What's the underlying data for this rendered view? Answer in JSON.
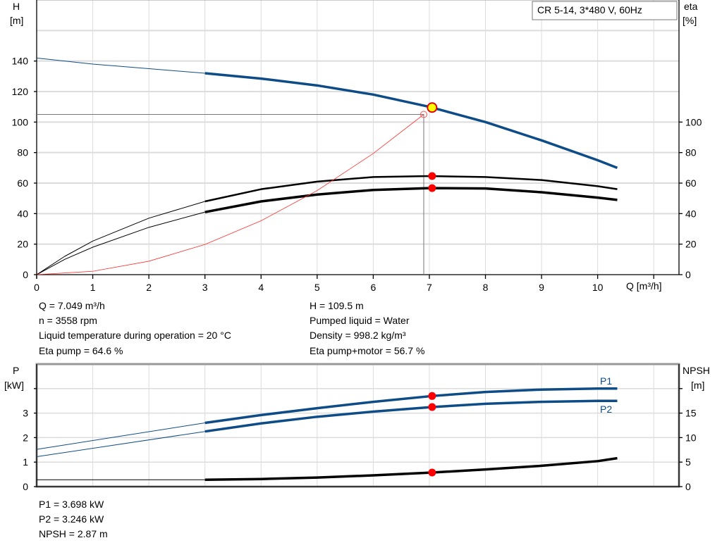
{
  "title_box": "CR 5-14, 3*480 V, 60Hz",
  "info_left": [
    "Q = 7.049 m³/h",
    "n = 3558 rpm",
    "Liquid temperature during operation = 20 °C",
    "Eta pump = 64.6 %"
  ],
  "info_right": [
    "H = 109.5 m",
    "Pumped liquid = Water",
    "Density = 998.2 kg/m³",
    "Eta pump+motor = 56.7 %"
  ],
  "info_bottom": [
    "P1 = 3.698 kW",
    "P2 = 3.246 kW",
    "NPSH = 2.87 m"
  ],
  "chart_data": [
    {
      "type": "line",
      "ylabel_top": "H",
      "ylabel_unit": "[m]",
      "y2label_top": "eta",
      "y2label_unit": "[%]",
      "xlabel": "Q [m³/h]",
      "xlim": [
        0,
        11.45
      ],
      "ylim": [
        0,
        180
      ],
      "y2lim": [
        0,
        180
      ],
      "xticks": [
        0,
        1,
        2,
        3,
        4,
        5,
        6,
        7,
        8,
        9,
        10
      ],
      "yticks": [
        0,
        20,
        40,
        60,
        80,
        100,
        120,
        140
      ],
      "y2ticks": [
        0,
        20,
        40,
        60,
        80,
        100
      ],
      "grid": true,
      "series": [
        {
          "key": "H",
          "axis": "left",
          "color": "#0e4c87",
          "x": [
            0,
            1,
            2,
            3,
            4,
            5,
            6,
            7,
            8,
            9,
            10,
            10.35
          ],
          "y": [
            142,
            138,
            135,
            132,
            128.5,
            124,
            118,
            110,
            100,
            88,
            75,
            70
          ],
          "thin_until": 3
        },
        {
          "key": "eta_pump",
          "axis": "right",
          "color": "#000000",
          "x": [
            0,
            0.5,
            1,
            2,
            3,
            4,
            5,
            6,
            7,
            8,
            9,
            10,
            10.35
          ],
          "y": [
            0,
            12,
            22,
            37,
            48,
            56,
            61,
            64,
            64.6,
            64,
            62,
            58,
            56
          ],
          "thin_until": 3
        },
        {
          "key": "eta_pump_motor",
          "axis": "right",
          "color": "#000000",
          "x": [
            0,
            0.5,
            1,
            2,
            3,
            4,
            5,
            6,
            7,
            8,
            9,
            10,
            10.35
          ],
          "y": [
            0,
            10,
            18,
            31,
            41,
            48,
            52.5,
            55.5,
            56.7,
            56.5,
            54,
            50.5,
            49
          ],
          "thin_until": 3
        },
        {
          "key": "system_curve",
          "axis": "left",
          "color": "#ff3030",
          "x": [
            0,
            1,
            2,
            3,
            4,
            5,
            6,
            6.9
          ],
          "y": [
            0,
            2.2,
            8.8,
            19.8,
            35.3,
            55.1,
            79.4,
            105
          ]
        }
      ],
      "duty_point": {
        "Q": 7.049,
        "H": 109.5,
        "eta_pump": 64.6,
        "eta_pump_motor": 56.7
      },
      "requested_point": {
        "Q": 6.9,
        "H": 105
      }
    },
    {
      "type": "line",
      "ylabel_top": "P",
      "ylabel_unit": "[kW]",
      "y2label_top": "NPSH",
      "y2label_unit": "[m]",
      "xlim": [
        0,
        11.45
      ],
      "ylim": [
        0,
        5
      ],
      "y2lim": [
        0,
        25
      ],
      "yticks": [
        0,
        1,
        2,
        3
      ],
      "y2ticks": [
        0,
        5,
        10,
        15
      ],
      "grid": true,
      "series": [
        {
          "name": "P1",
          "axis": "left",
          "color": "#0e4c87",
          "x": [
            0,
            3,
            4,
            5,
            6,
            7.049,
            8,
            9,
            10,
            10.35
          ],
          "y": [
            1.52,
            2.6,
            2.92,
            3.2,
            3.46,
            3.698,
            3.86,
            3.96,
            4.0,
            4.0
          ],
          "thin_until": 3
        },
        {
          "name": "P2",
          "axis": "left",
          "color": "#0e4c87",
          "x": [
            0,
            3,
            4,
            5,
            6,
            7.049,
            8,
            9,
            10,
            10.35
          ],
          "y": [
            1.22,
            2.25,
            2.58,
            2.85,
            3.06,
            3.246,
            3.38,
            3.46,
            3.5,
            3.5
          ],
          "thin_until": 3
        },
        {
          "key": "NPSH",
          "axis": "right",
          "color": "#000000",
          "x": [
            0,
            3,
            4,
            5,
            6,
            7.049,
            8,
            9,
            10,
            10.35
          ],
          "y": [
            1.4,
            1.4,
            1.55,
            1.85,
            2.3,
            2.87,
            3.5,
            4.25,
            5.2,
            5.8
          ],
          "thin_until": 3
        }
      ],
      "duty_point": {
        "Q": 7.049,
        "P1": 3.698,
        "P2": 3.246,
        "NPSH": 2.87
      }
    }
  ]
}
